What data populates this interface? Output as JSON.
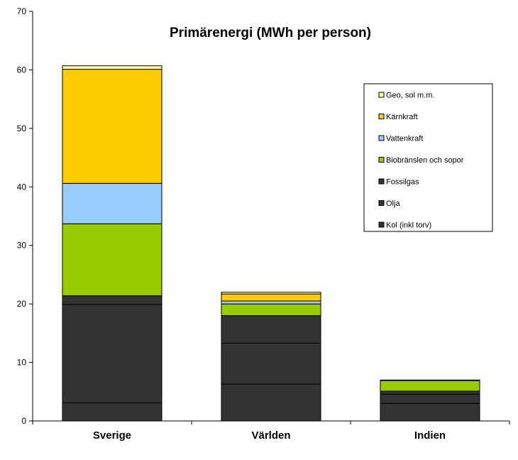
{
  "chart_data": {
    "type": "bar",
    "stacked": true,
    "title": "Primärenergi (MWh per person)",
    "xlabel": "",
    "ylabel": "",
    "categories": [
      "Sverige",
      "Världen",
      "Indien"
    ],
    "ylim": [
      0,
      70
    ],
    "yticks": [
      0,
      10,
      20,
      30,
      40,
      50,
      60,
      70
    ],
    "grid": false,
    "legend_position": "right",
    "series": [
      {
        "name": "Kol (inkl torv)",
        "color": "#333333",
        "values": [
          3.1,
          6.3,
          3.0
        ]
      },
      {
        "name": "Olja",
        "color": "#333333",
        "values": [
          16.8,
          7.0,
          1.6
        ]
      },
      {
        "name": "Fossilgas",
        "color": "#333333",
        "values": [
          1.5,
          4.7,
          0.5
        ]
      },
      {
        "name": "Biobränslen och sopor",
        "color": "#99CC00",
        "values": [
          12.3,
          2.0,
          1.8
        ]
      },
      {
        "name": "Vattenkraft",
        "color": "#99CCFF",
        "values": [
          6.9,
          0.5,
          0.0
        ]
      },
      {
        "name": "Kärnkraft",
        "color": "#FFCC00",
        "values": [
          19.5,
          1.2,
          0.0
        ]
      },
      {
        "name": "Geo, sol m.m.",
        "color": "#FFFF99",
        "values": [
          0.6,
          0.3,
          0.1
        ]
      }
    ]
  }
}
